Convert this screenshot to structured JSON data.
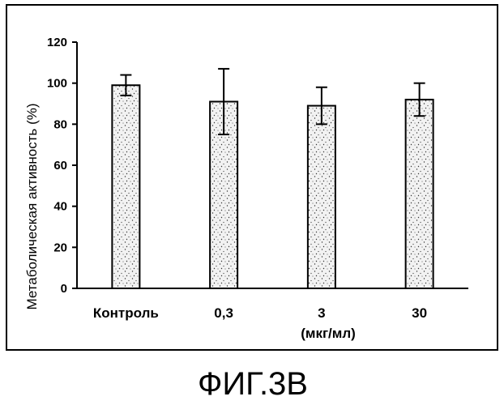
{
  "chart_data": {
    "type": "bar",
    "categories": [
      "Контроль",
      "0,3",
      "3",
      "30"
    ],
    "values": [
      99,
      91,
      89,
      92
    ],
    "errors": [
      5,
      16,
      9,
      8
    ],
    "ylabel": "Метаболическая активность (%)",
    "unit_label": "(мкг/мл)",
    "ylim": [
      0,
      120
    ],
    "yticks": [
      0,
      20,
      40,
      60,
      80,
      100,
      120
    ],
    "grid": false,
    "legend": "none",
    "bar_fill": "#f2f2f2",
    "speckle_color": "#333333"
  },
  "figure_caption": "ФИГ.3В"
}
